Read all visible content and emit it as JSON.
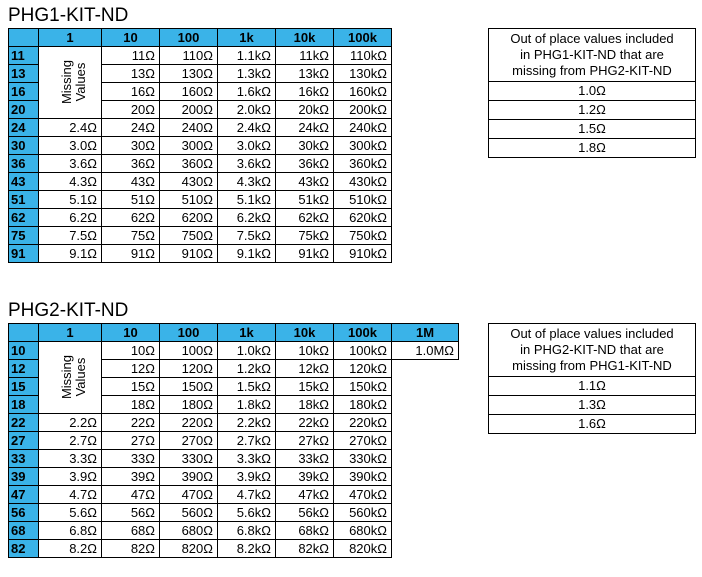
{
  "kit1": {
    "title": "PHG1-KIT-ND",
    "columns": [
      "1",
      "10",
      "100",
      "1k",
      "10k",
      "100k"
    ],
    "missing_label_line1": "Missing",
    "missing_label_line2": "Values",
    "rows": [
      {
        "head": "11",
        "cells": [
          "",
          "11Ω",
          "110Ω",
          "1.1kΩ",
          "11kΩ",
          "110kΩ"
        ]
      },
      {
        "head": "13",
        "cells": [
          "",
          "13Ω",
          "130Ω",
          "1.3kΩ",
          "13kΩ",
          "130kΩ"
        ]
      },
      {
        "head": "16",
        "cells": [
          "",
          "16Ω",
          "160Ω",
          "1.6kΩ",
          "16kΩ",
          "160kΩ"
        ]
      },
      {
        "head": "20",
        "cells": [
          "",
          "20Ω",
          "200Ω",
          "2.0kΩ",
          "20kΩ",
          "200kΩ"
        ]
      },
      {
        "head": "24",
        "cells": [
          "2.4Ω",
          "24Ω",
          "240Ω",
          "2.4kΩ",
          "24kΩ",
          "240kΩ"
        ]
      },
      {
        "head": "30",
        "cells": [
          "3.0Ω",
          "30Ω",
          "300Ω",
          "3.0kΩ",
          "30kΩ",
          "300kΩ"
        ]
      },
      {
        "head": "36",
        "cells": [
          "3.6Ω",
          "36Ω",
          "360Ω",
          "3.6kΩ",
          "36kΩ",
          "360kΩ"
        ]
      },
      {
        "head": "43",
        "cells": [
          "4.3Ω",
          "43Ω",
          "430Ω",
          "4.3kΩ",
          "43kΩ",
          "430kΩ"
        ]
      },
      {
        "head": "51",
        "cells": [
          "5.1Ω",
          "51Ω",
          "510Ω",
          "5.1kΩ",
          "51kΩ",
          "510kΩ"
        ]
      },
      {
        "head": "62",
        "cells": [
          "6.2Ω",
          "62Ω",
          "620Ω",
          "6.2kΩ",
          "62kΩ",
          "620kΩ"
        ]
      },
      {
        "head": "75",
        "cells": [
          "7.5Ω",
          "75Ω",
          "750Ω",
          "7.5kΩ",
          "75kΩ",
          "750kΩ"
        ]
      },
      {
        "head": "91",
        "cells": [
          "9.1Ω",
          "91Ω",
          "910Ω",
          "9.1kΩ",
          "91kΩ",
          "910kΩ"
        ]
      }
    ],
    "oop": {
      "header_line1": "Out of place values included",
      "header_line2": "in PHG1-KIT-ND that are",
      "header_line3": "missing from PHG2-KIT-ND",
      "items": [
        "1.0Ω",
        "1.2Ω",
        "1.5Ω",
        "1.8Ω"
      ]
    }
  },
  "kit2": {
    "title": "PHG2-KIT-ND",
    "columns": [
      "1",
      "10",
      "100",
      "1k",
      "10k",
      "100k",
      "1M"
    ],
    "missing_label_line1": "Missing",
    "missing_label_line2": "Values",
    "rows": [
      {
        "head": "10",
        "cells": [
          "",
          "10Ω",
          "100Ω",
          "1.0kΩ",
          "10kΩ",
          "100kΩ",
          "1.0MΩ"
        ]
      },
      {
        "head": "12",
        "cells": [
          "",
          "12Ω",
          "120Ω",
          "1.2kΩ",
          "12kΩ",
          "120kΩ",
          ""
        ]
      },
      {
        "head": "15",
        "cells": [
          "",
          "15Ω",
          "150Ω",
          "1.5kΩ",
          "15kΩ",
          "150kΩ",
          ""
        ]
      },
      {
        "head": "18",
        "cells": [
          "",
          "18Ω",
          "180Ω",
          "1.8kΩ",
          "18kΩ",
          "180kΩ",
          ""
        ]
      },
      {
        "head": "22",
        "cells": [
          "2.2Ω",
          "22Ω",
          "220Ω",
          "2.2kΩ",
          "22kΩ",
          "220kΩ",
          ""
        ]
      },
      {
        "head": "27",
        "cells": [
          "2.7Ω",
          "27Ω",
          "270Ω",
          "2.7kΩ",
          "27kΩ",
          "270kΩ",
          ""
        ]
      },
      {
        "head": "33",
        "cells": [
          "3.3Ω",
          "33Ω",
          "330Ω",
          "3.3kΩ",
          "33kΩ",
          "330kΩ",
          ""
        ]
      },
      {
        "head": "39",
        "cells": [
          "3.9Ω",
          "39Ω",
          "390Ω",
          "3.9kΩ",
          "39kΩ",
          "390kΩ",
          ""
        ]
      },
      {
        "head": "47",
        "cells": [
          "4.7Ω",
          "47Ω",
          "470Ω",
          "4.7kΩ",
          "47kΩ",
          "470kΩ",
          ""
        ]
      },
      {
        "head": "56",
        "cells": [
          "5.6Ω",
          "56Ω",
          "560Ω",
          "5.6kΩ",
          "56kΩ",
          "560kΩ",
          ""
        ]
      },
      {
        "head": "68",
        "cells": [
          "6.8Ω",
          "68Ω",
          "680Ω",
          "6.8kΩ",
          "68kΩ",
          "680kΩ",
          ""
        ]
      },
      {
        "head": "82",
        "cells": [
          "8.2Ω",
          "82Ω",
          "820Ω",
          "8.2kΩ",
          "82kΩ",
          "820kΩ",
          ""
        ]
      }
    ],
    "oop": {
      "header_line1": "Out of place values included",
      "header_line2": "in PHG2-KIT-ND that are",
      "header_line3": "missing from PHG1-KIT-ND",
      "items": [
        "1.1Ω",
        "1.3Ω",
        "1.6Ω"
      ]
    }
  }
}
